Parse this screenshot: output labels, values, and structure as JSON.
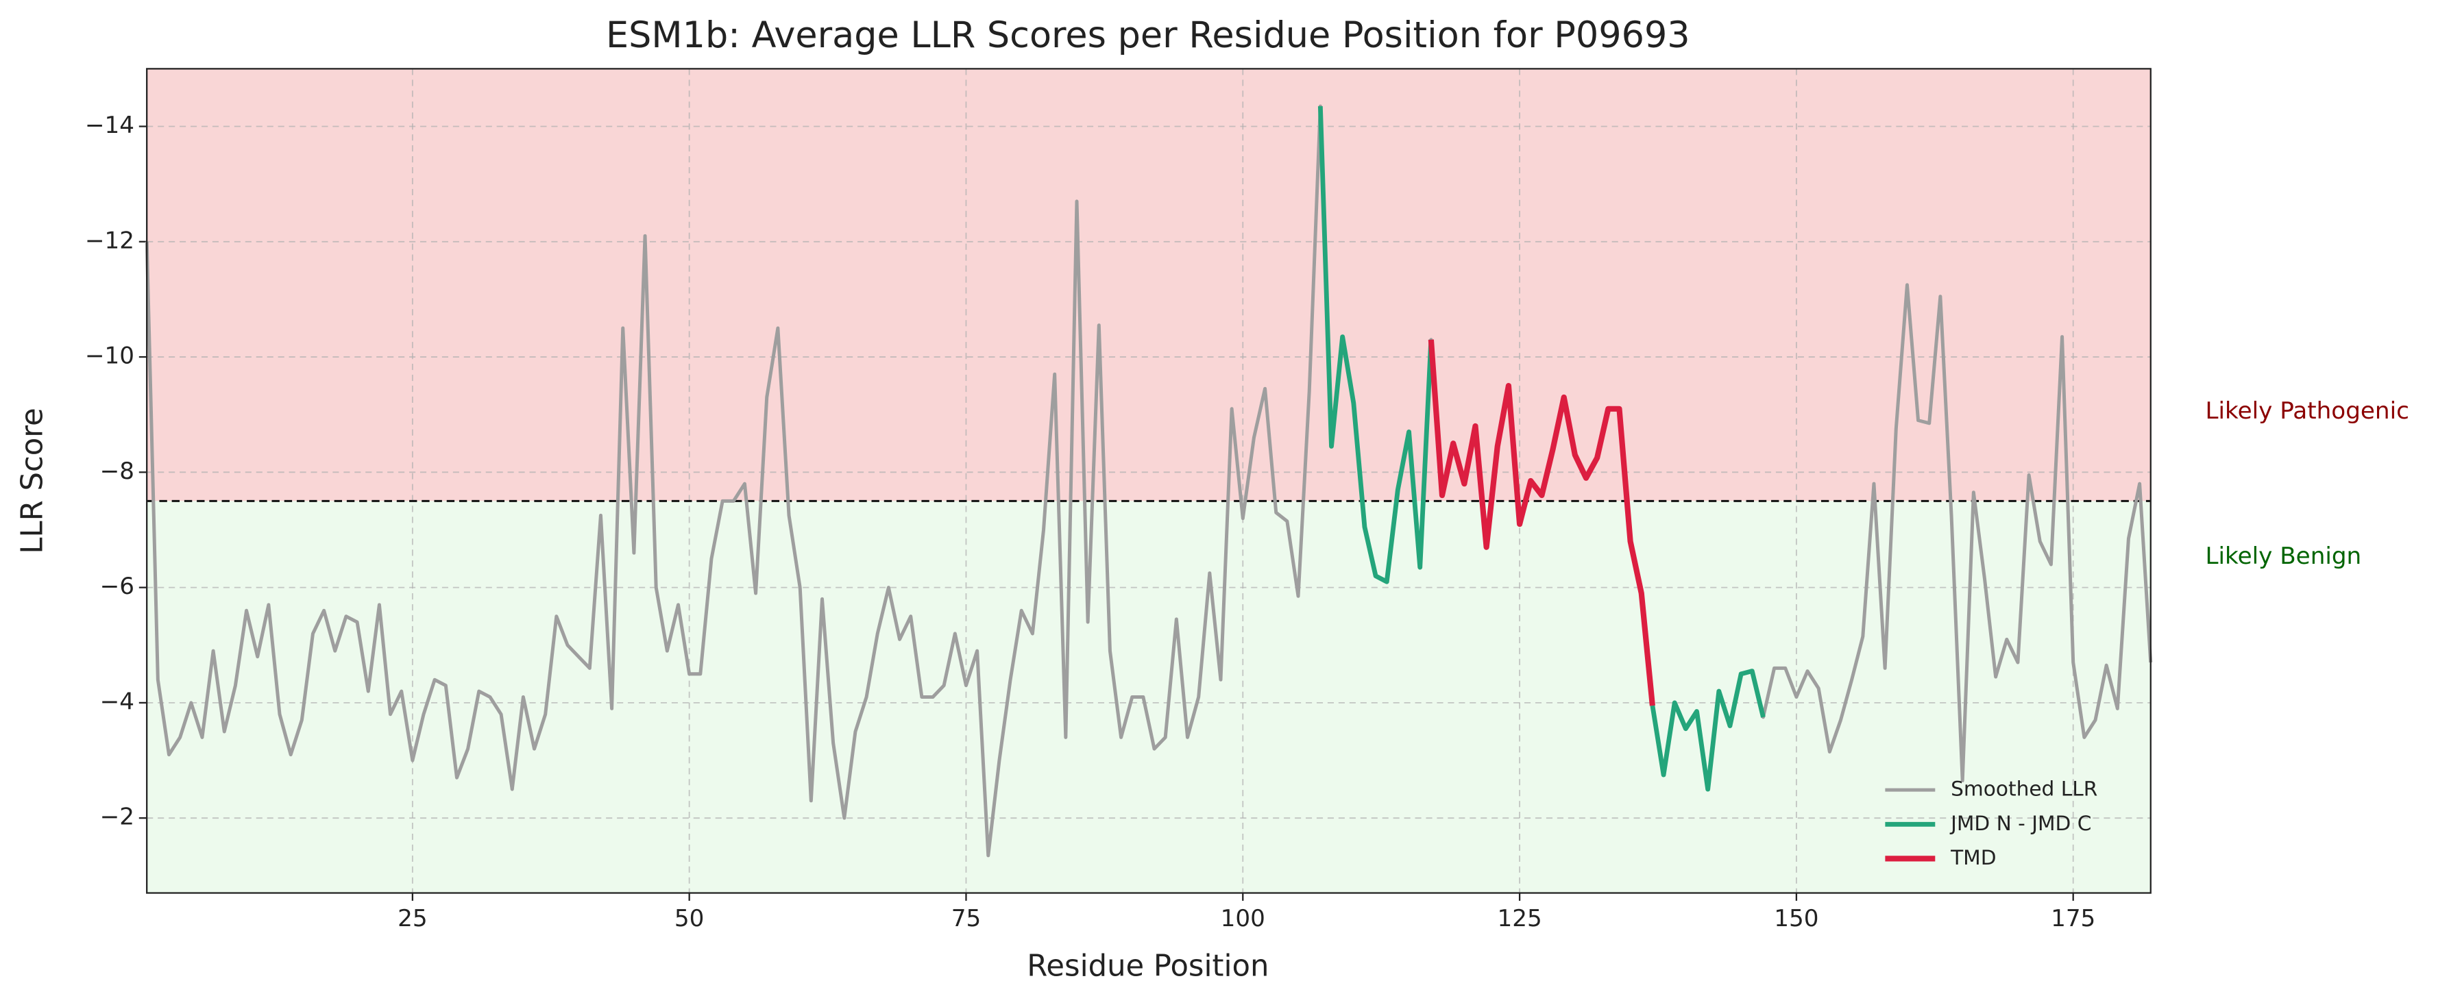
{
  "chart_data": {
    "type": "line",
    "title": "ESM1b: Average LLR Scores per Residue Position for P09693",
    "xlabel": "Residue Position",
    "ylabel": "LLR Score",
    "xlim": [
      1,
      182
    ],
    "ylim": [
      -15,
      -0.7
    ],
    "y_inverted": true,
    "xticks": [
      25,
      50,
      75,
      100,
      125,
      150,
      175
    ],
    "yticks": [
      {
        "value": -14,
        "label": "−14"
      },
      {
        "value": -12,
        "label": "−12"
      },
      {
        "value": -10,
        "label": "−10"
      },
      {
        "value": -8,
        "label": "−8"
      },
      {
        "value": -6,
        "label": "−6"
      },
      {
        "value": -4,
        "label": "−4"
      },
      {
        "value": -2,
        "label": "−2"
      }
    ],
    "grid": true,
    "legend": "lower right",
    "threshold": -7.5,
    "regions": [
      {
        "name": "Likely Pathogenic",
        "color": "#f9d6d6",
        "text_color": "#8b0000",
        "side": "below"
      },
      {
        "name": "Likely Benign",
        "color": "#edfaed",
        "text_color": "#006400",
        "side": "above"
      }
    ],
    "series": [
      {
        "name": "Smoothed LLR",
        "color": "#9e9e9e",
        "width": 2.2,
        "x": [
          1,
          2,
          3,
          4,
          5,
          6,
          7,
          8,
          9,
          10,
          11,
          12,
          13,
          14,
          15,
          16,
          17,
          18,
          19,
          20,
          21,
          22,
          23,
          24,
          25,
          26,
          27,
          28,
          29,
          30,
          31,
          32,
          33,
          34,
          35,
          36,
          37,
          38,
          39,
          40,
          41,
          42,
          43,
          44,
          45,
          46,
          47,
          48,
          49,
          50,
          51,
          52,
          53,
          54,
          55,
          56,
          57,
          58,
          59,
          60,
          61,
          62,
          63,
          64,
          65,
          66,
          67,
          68,
          69,
          70,
          71,
          72,
          73,
          74,
          75,
          76,
          77,
          78,
          79,
          80,
          81,
          82,
          83,
          84,
          85,
          86,
          87,
          88,
          89,
          90,
          91,
          92,
          93,
          94,
          95,
          96,
          97,
          98,
          99,
          100,
          101,
          102,
          103,
          104,
          105,
          106,
          107,
          108,
          109,
          110,
          111,
          112,
          113,
          114,
          115,
          116,
          117,
          118,
          119,
          120,
          121,
          122,
          123,
          124,
          125,
          126,
          127,
          128,
          129,
          130,
          131,
          132,
          133,
          134,
          135,
          136,
          137,
          138,
          139,
          140,
          141,
          142,
          143,
          144,
          145,
          146,
          147,
          148,
          149,
          150,
          151,
          152,
          153,
          154,
          155,
          156,
          157,
          158,
          159,
          160,
          161,
          162,
          163,
          164,
          165,
          166,
          167,
          168,
          169,
          170,
          171,
          172,
          173,
          174,
          175,
          176,
          177,
          178,
          179,
          180,
          181,
          182
        ],
        "values": [
          -12,
          -4.4,
          -3.1,
          -3.4,
          -4.0,
          -3.4,
          -4.9,
          -3.5,
          -4.3,
          -5.6,
          -4.8,
          -5.7,
          -3.8,
          -3.1,
          -3.7,
          -5.2,
          -5.6,
          -4.9,
          -5.5,
          -5.4,
          -4.2,
          -5.7,
          -3.8,
          -4.2,
          -3.0,
          -3.8,
          -4.4,
          -4.3,
          -2.7,
          -3.2,
          -4.2,
          -4.1,
          -3.8,
          -2.5,
          -4.1,
          -3.2,
          -3.8,
          -5.5,
          -5.0,
          -4.8,
          -4.6,
          -7.25,
          -3.9,
          -10.5,
          -6.6,
          -12.1,
          -6.0,
          -4.9,
          -5.7,
          -4.5,
          -4.5,
          -6.5,
          -7.5,
          -7.5,
          -7.8,
          -5.9,
          -9.3,
          -10.5,
          -7.25,
          -6.0,
          -2.3,
          -5.8,
          -3.3,
          -2.0,
          -3.5,
          -4.1,
          -5.2,
          -6.0,
          -5.1,
          -5.5,
          -4.1,
          -4.1,
          -4.3,
          -5.2,
          -4.3,
          -4.9,
          -1.35,
          -3.0,
          -4.4,
          -5.6,
          -5.2,
          -7.0,
          -9.7,
          -3.4,
          -12.7,
          -5.4,
          -10.55,
          -4.9,
          -3.4,
          -4.1,
          -4.1,
          -3.2,
          -3.4,
          -5.45,
          -3.4,
          -4.1,
          -6.25,
          -4.4,
          -9.1,
          -7.2,
          -8.6,
          -9.45,
          -7.3,
          -7.15,
          -5.85,
          -9.4,
          -14.35,
          -8.45,
          -10.35,
          -9.2,
          -7.05,
          -6.2,
          -6.1,
          -7.7,
          -8.7,
          -6.35,
          -10.3,
          -7.6,
          -8.5,
          -7.8,
          -8.8,
          -6.7,
          -8.45,
          -9.5,
          -7.1,
          -7.85,
          -7.6,
          -8.4,
          -9.3,
          -8.3,
          -7.9,
          -8.25,
          -9.1,
          -9.1,
          -6.8,
          -5.9,
          -3.95,
          -2.75,
          -4.0,
          -3.55,
          -3.85,
          -2.5,
          -4.2,
          -3.6,
          -4.5,
          -4.55,
          -3.75,
          -4.6,
          -4.6,
          -4.1,
          -4.55,
          -4.25,
          -3.15,
          -3.7,
          -4.4,
          -5.15,
          -7.8,
          -4.6,
          -8.75,
          -11.25,
          -8.9,
          -8.85,
          -11.05,
          -7.25,
          -2.65,
          -7.65,
          -6.15,
          -4.45,
          -5.1,
          -4.7,
          -7.95,
          -6.8,
          -6.4,
          -10.35,
          -4.7,
          -3.4,
          -3.7,
          -4.65,
          -3.9,
          -6.85,
          -7.8,
          -4.7
        ]
      },
      {
        "name": "JMD N - JMD C",
        "color": "#24a57b",
        "width": 3,
        "x": [
          107,
          108,
          109,
          110,
          111,
          112,
          113,
          114,
          115,
          116,
          117,
          118,
          119,
          120,
          121,
          122,
          123,
          124,
          125,
          126,
          127,
          128,
          129,
          130,
          131,
          132,
          133,
          134,
          135,
          136,
          137,
          138,
          139,
          140,
          141,
          142,
          143,
          144,
          145,
          146,
          147
        ],
        "values": [
          -14.35,
          -8.45,
          -10.35,
          -9.2,
          -7.05,
          -6.2,
          -6.1,
          -7.7,
          -8.7,
          -6.35,
          -10.3,
          null,
          null,
          null,
          null,
          null,
          null,
          null,
          null,
          null,
          null,
          null,
          null,
          null,
          null,
          null,
          null,
          null,
          null,
          null,
          -3.95,
          -2.75,
          -4.0,
          -3.55,
          -3.85,
          -2.5,
          -4.2,
          -3.6,
          -4.5,
          -4.55,
          -3.75
        ]
      },
      {
        "name": "TMD",
        "color": "#dc1e40",
        "width": 3.6,
        "x": [
          117,
          118,
          119,
          120,
          121,
          122,
          123,
          124,
          125,
          126,
          127,
          128,
          129,
          130,
          131,
          132,
          133,
          134,
          135,
          136,
          137
        ],
        "values": [
          -10.3,
          -7.6,
          -8.5,
          -7.8,
          -8.8,
          -6.7,
          -8.45,
          -9.5,
          -7.1,
          -7.85,
          -7.6,
          -8.4,
          -9.3,
          -8.3,
          -7.9,
          -8.25,
          -9.1,
          -9.1,
          -6.8,
          -5.9,
          -3.95
        ]
      }
    ]
  }
}
